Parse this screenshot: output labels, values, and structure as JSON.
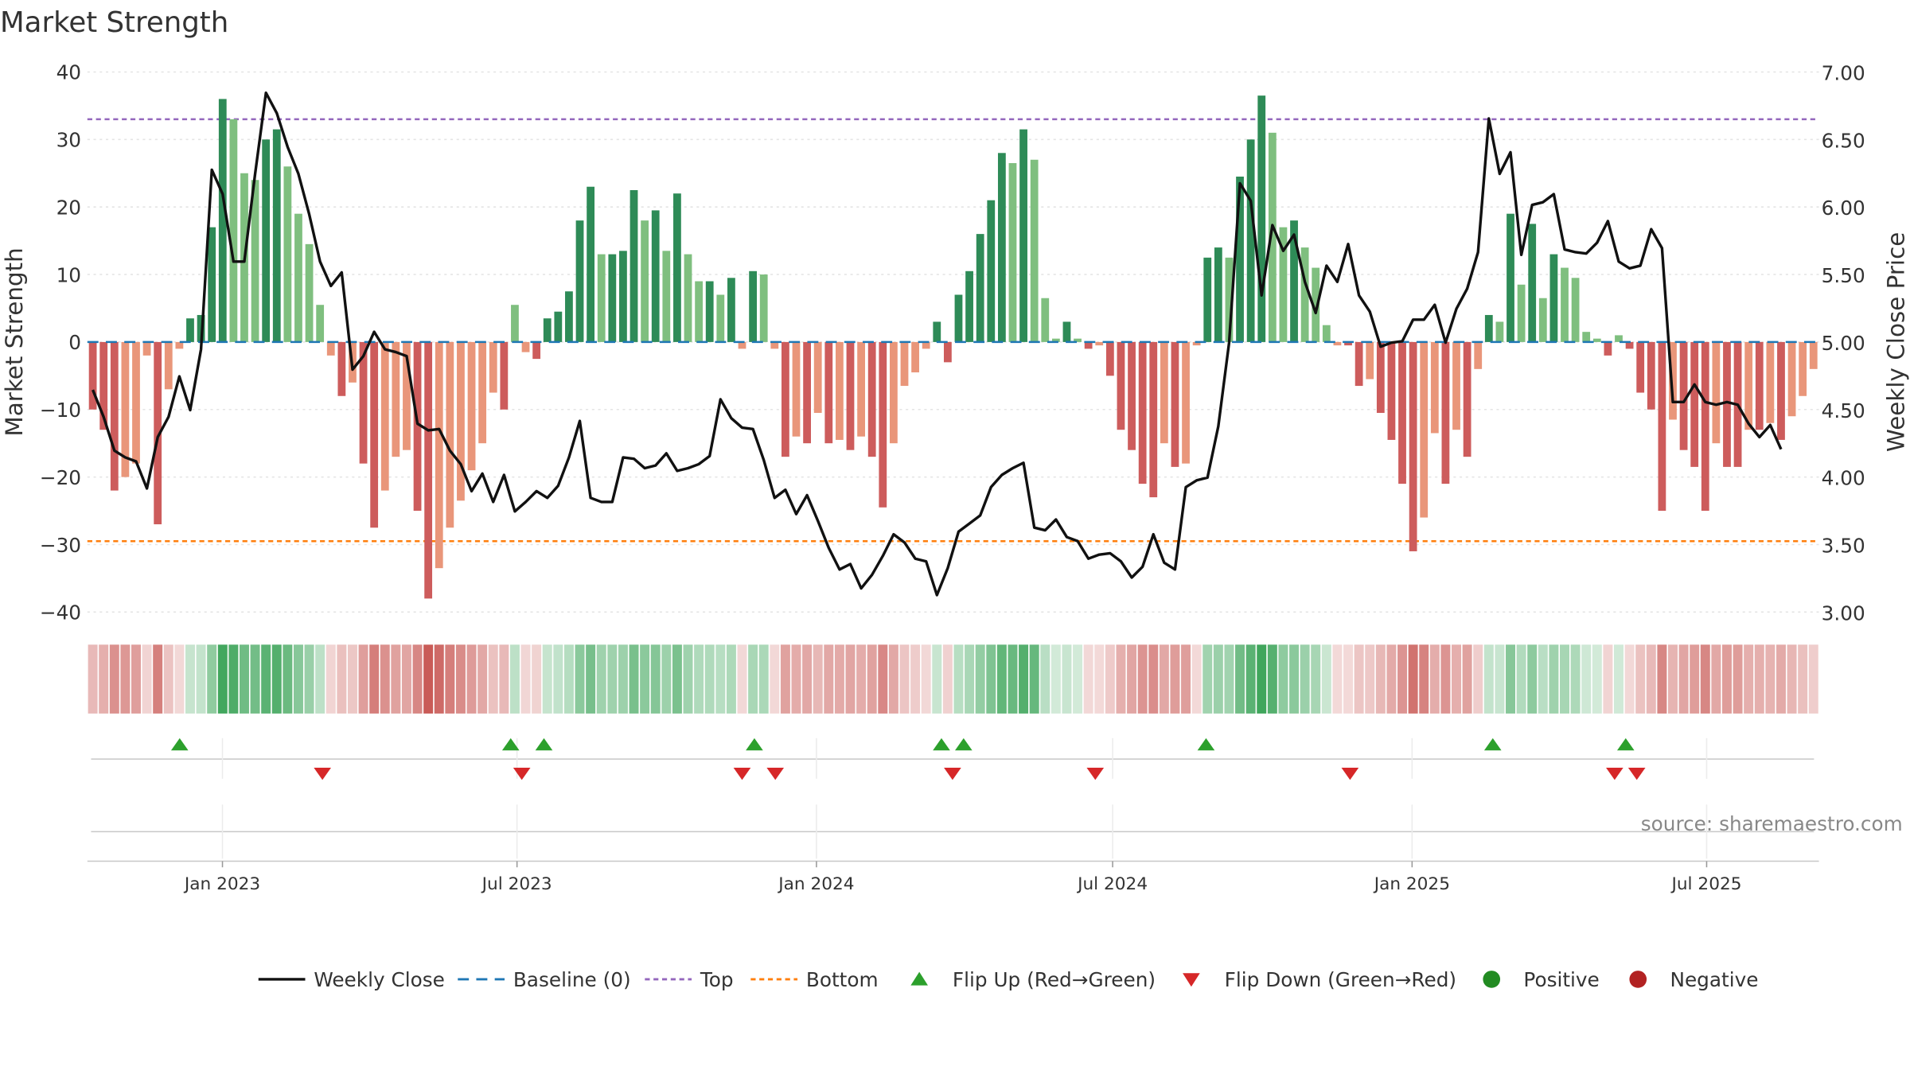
{
  "chart_data": {
    "type": "bar",
    "title": "Market Strength",
    "ylabel": "Market Strength",
    "y2label": "Weekly Close Price",
    "ylim": [
      -40,
      40
    ],
    "y2lim": [
      3.0,
      7.0
    ],
    "yticks": [
      "40",
      "30",
      "20",
      "10",
      "0",
      "−10",
      "−20",
      "−30",
      "−40"
    ],
    "y2ticks": [
      "7.00",
      "6.50",
      "6.00",
      "5.50",
      "5.00",
      "4.50",
      "4.00",
      "3.50",
      "3.00"
    ],
    "top_threshold": 33,
    "bottom_threshold": -29.5,
    "x_start": "2022-10-10",
    "x_end": "2025-09-08",
    "xticks": [
      {
        "label": "Jan 2023",
        "date": "2023-01-01"
      },
      {
        "label": "Jul 2023",
        "date": "2023-07-01"
      },
      {
        "label": "Jan 2024",
        "date": "2024-01-01"
      },
      {
        "label": "Jul 2024",
        "date": "2024-07-01"
      },
      {
        "label": "Jan 2025",
        "date": "2025-01-01"
      },
      {
        "label": "Jul 2025",
        "date": "2025-07-01"
      }
    ],
    "strength": [
      -10,
      -13,
      -22,
      -20,
      -18,
      -2,
      -27,
      -7,
      -1,
      3.5,
      4,
      17,
      36,
      33,
      25,
      24,
      30,
      31.5,
      26,
      19,
      14.5,
      5.5,
      -2,
      -8,
      -6,
      -18,
      -27.5,
      -22,
      -17,
      -16,
      -25,
      -38,
      -33.5,
      -27.5,
      -23.5,
      -19,
      -15,
      -7.5,
      -10,
      5.5,
      -1.5,
      -2.5,
      3.5,
      4.5,
      7.5,
      18,
      23,
      13,
      13,
      13.5,
      22.5,
      18,
      19.5,
      13.5,
      22,
      13,
      9,
      9,
      7,
      9.5,
      -1,
      10.5,
      10,
      -1,
      -17,
      -14,
      -15,
      -10.5,
      -15,
      -14.5,
      -16,
      -14,
      -17,
      -24.5,
      -15,
      -6.5,
      -4.5,
      -1,
      3,
      -3,
      7,
      10.5,
      16,
      21,
      28,
      26.5,
      31.5,
      27,
      6.5,
      0.5,
      3,
      0.5,
      -1,
      -0.5,
      -5,
      -13,
      -16,
      -21,
      -23,
      -15,
      -18.5,
      -18,
      -0.5,
      12.5,
      14,
      12.5,
      24.5,
      30,
      36.5,
      31,
      17,
      18,
      14,
      11,
      2.5,
      -0.5,
      -0.5,
      -6.5,
      -5.5,
      -10.5,
      -14.5,
      -21,
      -31,
      -26,
      -13.5,
      -21,
      -13,
      -17,
      -4,
      4,
      3,
      19,
      8.5,
      17.5,
      6.5,
      13,
      11,
      9.5,
      1.5,
      0.5,
      -2,
      1,
      -1,
      -7.5,
      -10,
      -25,
      -11.5,
      -16,
      -18.5,
      -25,
      -15,
      -18.5,
      -18.5,
      -13,
      -13,
      -12,
      -14.5,
      -11,
      -8,
      -4
    ],
    "close": [
      4.65,
      4.45,
      4.2,
      4.15,
      4.12,
      3.92,
      4.3,
      4.45,
      4.75,
      4.5,
      4.95,
      6.28,
      6.1,
      5.6,
      5.6,
      6.25,
      6.85,
      6.7,
      6.45,
      6.25,
      5.95,
      5.6,
      5.42,
      5.52,
      4.8,
      4.9,
      5.08,
      4.95,
      4.93,
      4.9,
      4.4,
      4.35,
      4.36,
      4.2,
      4.1,
      3.9,
      4.03,
      3.82,
      4.02,
      3.75,
      3.82,
      3.9,
      3.85,
      3.94,
      4.15,
      4.42,
      3.85,
      3.82,
      3.82,
      4.15,
      4.14,
      4.07,
      4.09,
      4.18,
      4.05,
      4.07,
      4.1,
      4.16,
      4.58,
      4.44,
      4.37,
      4.36,
      4.13,
      3.85,
      3.91,
      3.73,
      3.87,
      3.68,
      3.48,
      3.32,
      3.36,
      3.18,
      3.28,
      3.42,
      3.58,
      3.52,
      3.4,
      3.38,
      3.13,
      3.33,
      3.6,
      3.66,
      3.72,
      3.93,
      4.02,
      4.07,
      4.11,
      3.63,
      3.61,
      3.69,
      3.56,
      3.53,
      3.4,
      3.43,
      3.44,
      3.38,
      3.26,
      3.34,
      3.58,
      3.37,
      3.32,
      3.93,
      3.98,
      4.0,
      4.38,
      5.0,
      6.18,
      6.05,
      5.35,
      5.87,
      5.68,
      5.8,
      5.45,
      5.22,
      5.57,
      5.45,
      5.73,
      5.35,
      5.23,
      4.97,
      5.0,
      5.01,
      5.17,
      5.17,
      5.28,
      5.0,
      5.25,
      5.4,
      5.67,
      6.66,
      6.25,
      6.41,
      5.65,
      6.02,
      6.04,
      6.1,
      5.69,
      5.67,
      5.66,
      5.74,
      5.9,
      5.6,
      5.55,
      5.57,
      5.84,
      5.7,
      4.56,
      4.56,
      4.69,
      4.56,
      4.54,
      4.56,
      4.54,
      4.4,
      4.3,
      4.39,
      4.21
    ],
    "flip_up_x": [
      146,
      415,
      442,
      613,
      765,
      783,
      980,
      1213,
      1321
    ],
    "flip_down_x": [
      262,
      424,
      603,
      630,
      774,
      890,
      1097,
      1312,
      1330
    ],
    "legend": [
      {
        "key": "close",
        "label": "Weekly Close"
      },
      {
        "key": "baseline",
        "label": "Baseline (0)"
      },
      {
        "key": "top",
        "label": "Top"
      },
      {
        "key": "bottom",
        "label": "Bottom"
      },
      {
        "key": "flip_up",
        "label": "Flip Up (Red→Green)"
      },
      {
        "key": "flip_down",
        "label": "Flip Down (Green→Red)"
      },
      {
        "key": "positive",
        "label": "Positive"
      },
      {
        "key": "negative",
        "label": "Negative"
      }
    ],
    "source": "source: sharemaestro.com"
  },
  "colors": {
    "pos_strong": "#2e8b57",
    "pos_light": "#7fbf7f",
    "neg_strong": "#cd5c5c",
    "neg_light": "#e9967a",
    "close_line": "#111111",
    "baseline": "#1f77b4",
    "top": "#9467bd",
    "bottom": "#ff7f0e",
    "flip_up": "#2ca02c",
    "flip_down": "#d62728",
    "positive_dot": "#228b22",
    "negative_dot": "#b22222"
  }
}
